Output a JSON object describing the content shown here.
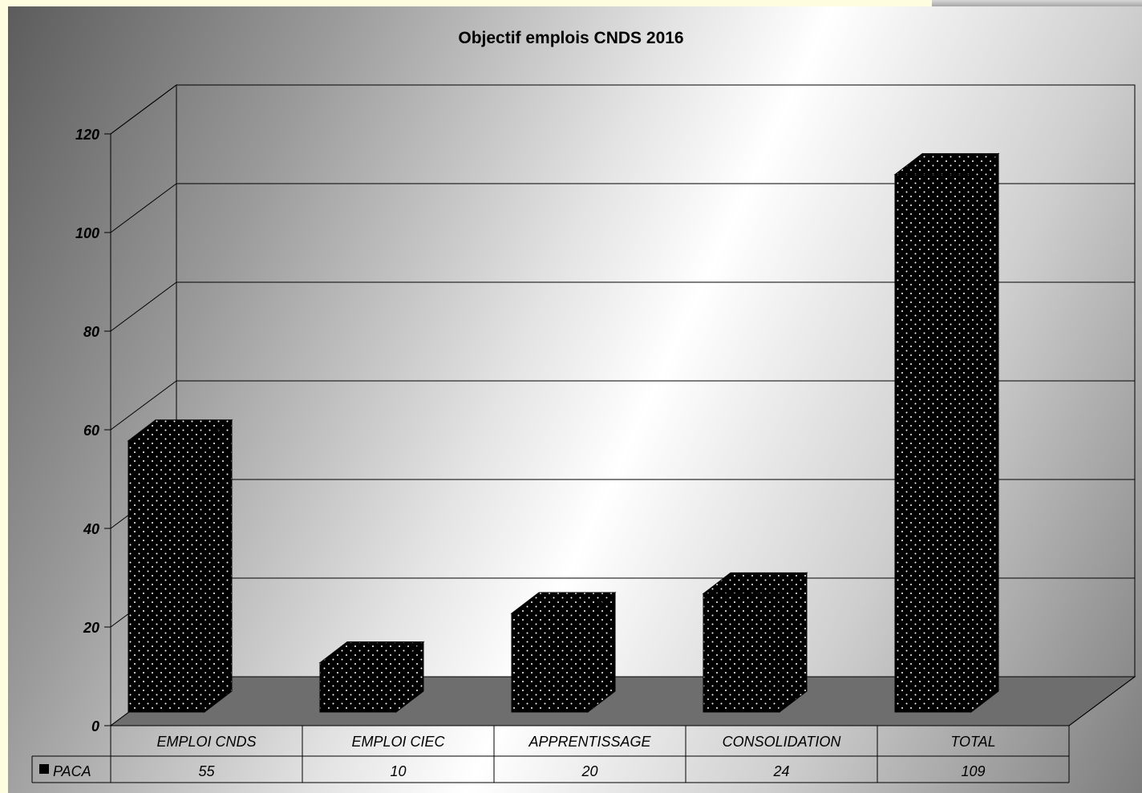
{
  "chart_data": {
    "type": "bar",
    "title": "Objectif emplois CNDS 2016",
    "xlabel": "",
    "ylabel": "",
    "categories": [
      "EMPLOI CNDS",
      "EMPLOI CIEC",
      "APPRENTISSAGE",
      "CONSOLIDATION",
      "TOTAL"
    ],
    "series": [
      {
        "name": "PACA",
        "values": [
          55,
          10,
          20,
          24,
          109
        ]
      }
    ],
    "ylim": [
      0,
      120
    ],
    "yticks": [
      0,
      20,
      40,
      60,
      80,
      100,
      120
    ],
    "grid": true,
    "three_d": true,
    "legend": "data-table",
    "colors": {
      "bar": "#000000",
      "dots": "#ffffff",
      "floor": "#6e6e6e"
    }
  }
}
